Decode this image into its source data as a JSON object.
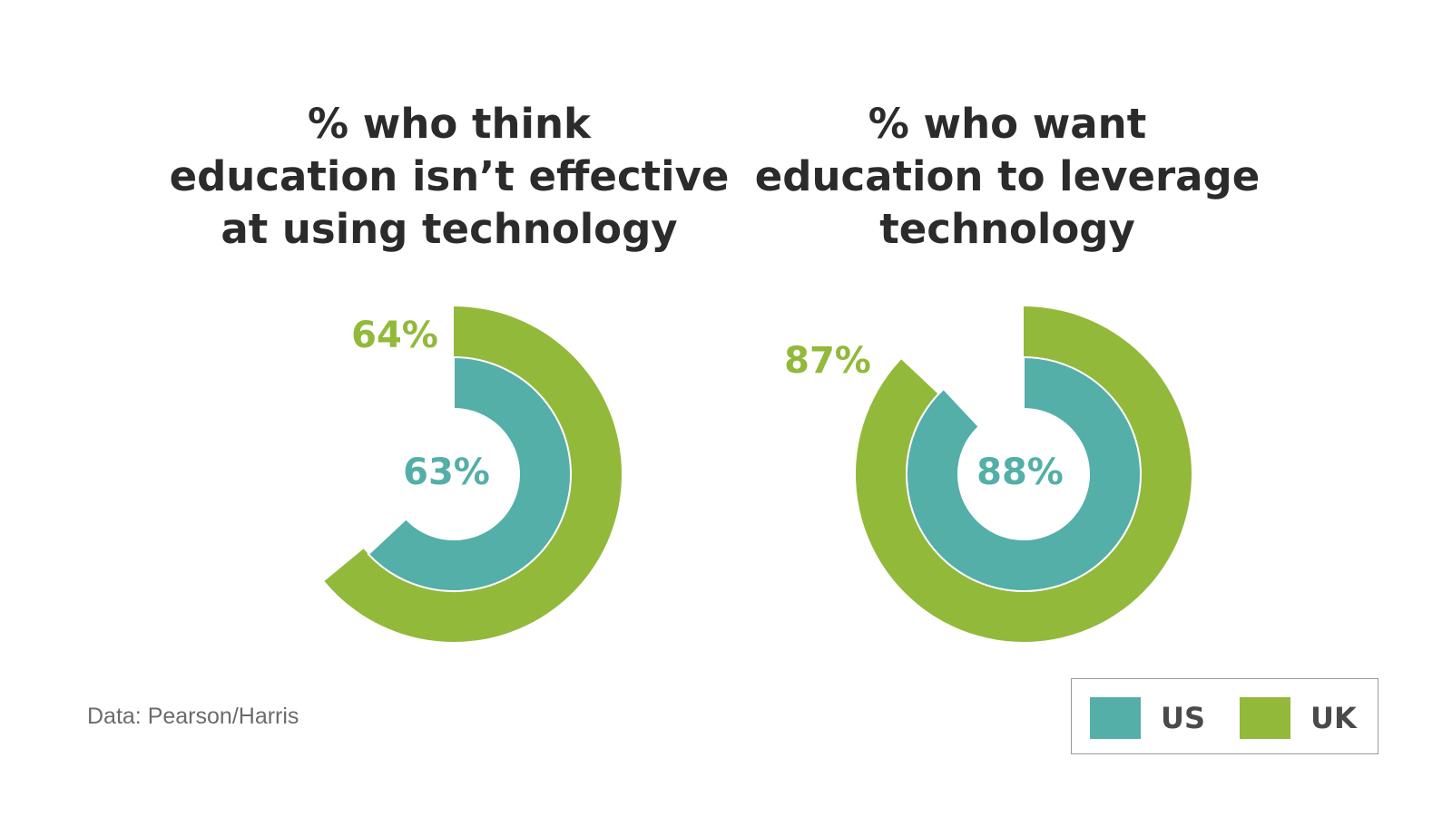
{
  "colors": {
    "us": "#53afa8",
    "uk": "#92b93a",
    "title": "#2b2b2b"
  },
  "chart_data": [
    {
      "type": "pie",
      "title_lines": [
        "% who think",
        "education isn’t effective",
        "at using technology"
      ],
      "series": [
        {
          "name": "US",
          "value": 63,
          "label": "63%",
          "ring": "inner"
        },
        {
          "name": "UK",
          "value": 64,
          "label": "64%",
          "ring": "outer"
        }
      ]
    },
    {
      "type": "pie",
      "title_lines": [
        "% who want",
        "education to leverage",
        "technology"
      ],
      "series": [
        {
          "name": "US",
          "value": 88,
          "label": "88%",
          "ring": "inner"
        },
        {
          "name": "UK",
          "value": 87,
          "label": "87%",
          "ring": "outer"
        }
      ]
    }
  ],
  "legend": [
    {
      "name": "US",
      "label": "US",
      "color": "#53afa8"
    },
    {
      "name": "UK",
      "label": "UK",
      "color": "#92b93a"
    }
  ],
  "source": "Data: Pearson/Harris"
}
